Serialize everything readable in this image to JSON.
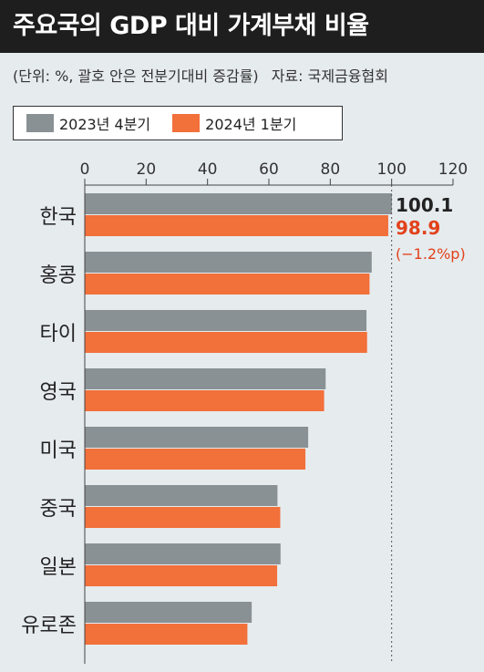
{
  "title": "주요국의 GDP 대비 가계부채 비율",
  "unit_note": "(단위: %, 괄호 안은 전분기대비 증감률)",
  "source": "자료: 국제금융협회",
  "colors": {
    "series_2023q4": "#8a9195",
    "series_2024q1": "#f2703a",
    "highlight_text": "#e2421b",
    "axis": "#444444"
  },
  "chart_data": {
    "type": "bar",
    "orientation": "horizontal",
    "title": "주요국의 GDP 대비 가계부채 비율",
    "xlim": [
      0,
      120
    ],
    "xticks": [
      0,
      20,
      40,
      60,
      80,
      100,
      120
    ],
    "categories": [
      "한국",
      "홍콩",
      "타이",
      "영국",
      "미국",
      "중국",
      "일본",
      "유로존"
    ],
    "series": [
      {
        "name": "2023년 4분기",
        "values": [
          100.1,
          93.5,
          91.8,
          78.5,
          72.8,
          62.8,
          63.8,
          54.4
        ]
      },
      {
        "name": "2024년 1분기",
        "values": [
          98.9,
          92.8,
          92.0,
          78.0,
          71.9,
          63.7,
          62.7,
          53.0
        ]
      }
    ],
    "annotations": {
      "category": "한국",
      "value_2023q4": "100.1",
      "value_2024q1": "98.9",
      "change": "(−1.2%p)"
    },
    "legend_position": "top",
    "grid": false,
    "reference_line": 100
  }
}
